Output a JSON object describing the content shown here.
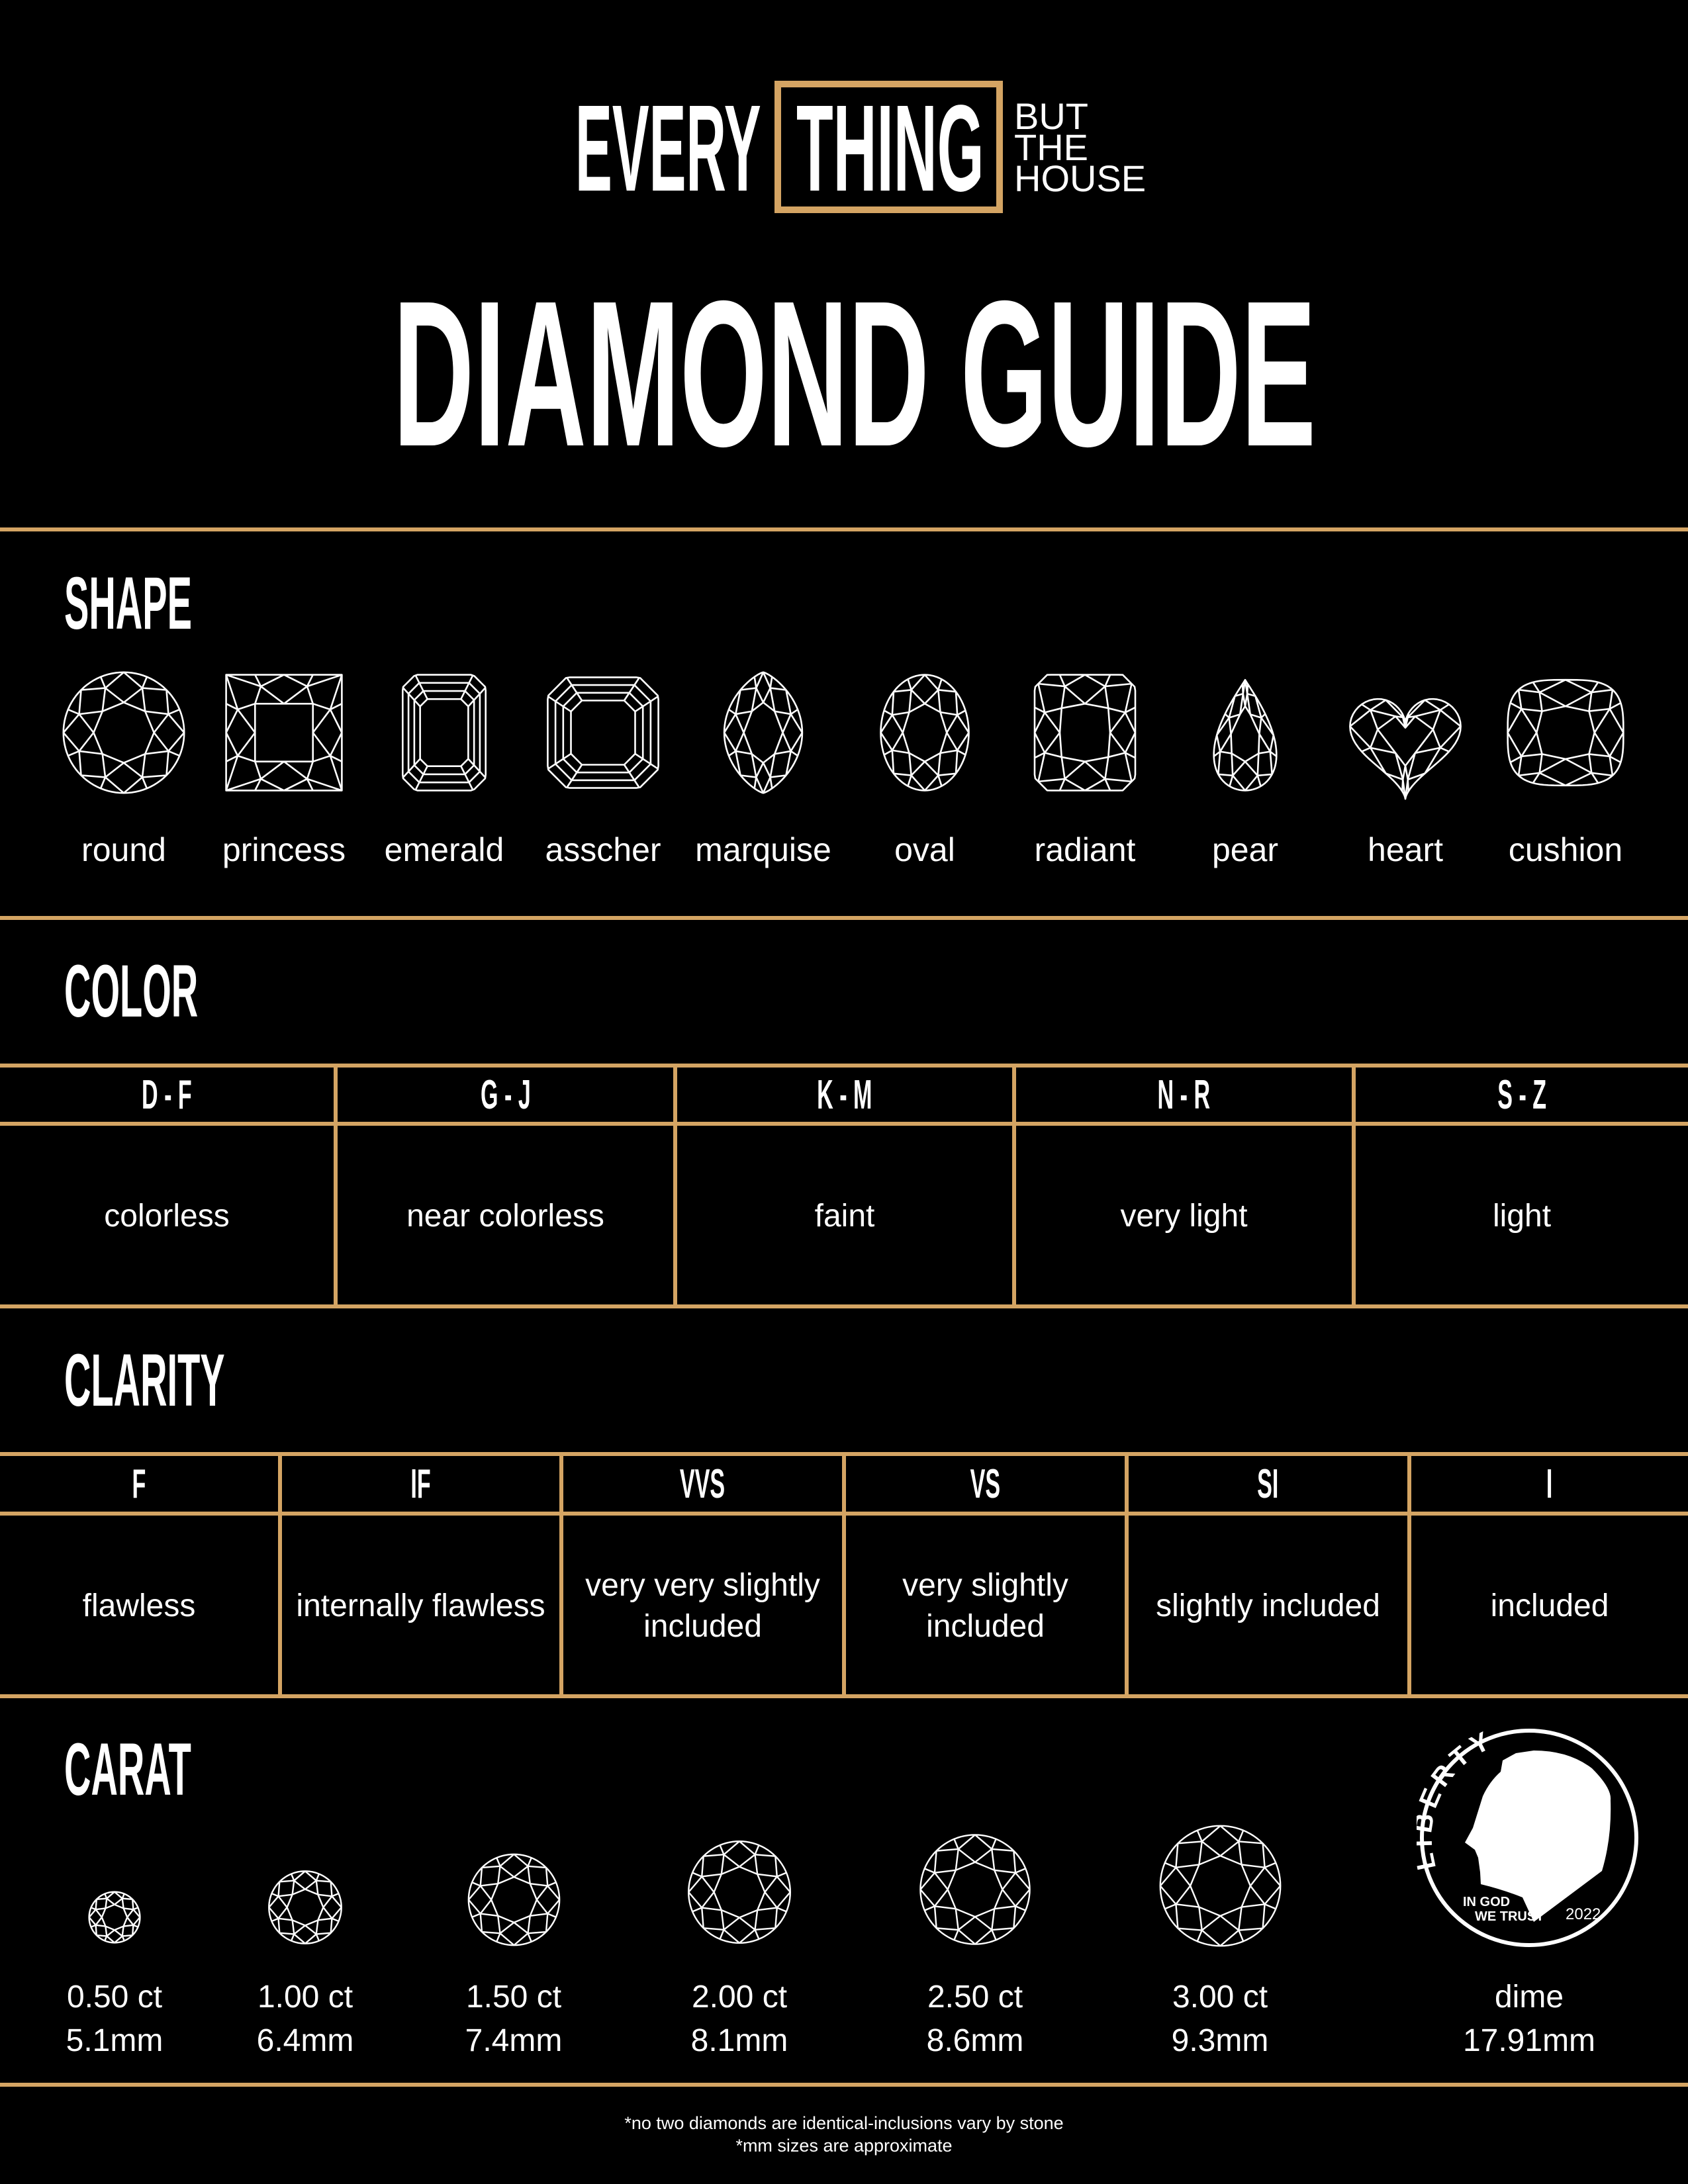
{
  "colors": {
    "gold": "#D4A463",
    "background": "#000000",
    "text": "#FFFFFF"
  },
  "logo": {
    "word1": "EVERY",
    "word2": "THING",
    "line1": "BUT",
    "line2": "THE",
    "line3": "HOUSE"
  },
  "title": "DIAMOND GUIDE",
  "shape": {
    "heading": "SHAPE",
    "items": [
      {
        "label": "round",
        "icon": "round-diamond-icon"
      },
      {
        "label": "princess",
        "icon": "princess-diamond-icon"
      },
      {
        "label": "emerald",
        "icon": "emerald-diamond-icon"
      },
      {
        "label": "asscher",
        "icon": "asscher-diamond-icon"
      },
      {
        "label": "marquise",
        "icon": "marquise-diamond-icon"
      },
      {
        "label": "oval",
        "icon": "oval-diamond-icon"
      },
      {
        "label": "radiant",
        "icon": "radiant-diamond-icon"
      },
      {
        "label": "pear",
        "icon": "pear-diamond-icon"
      },
      {
        "label": "heart",
        "icon": "heart-diamond-icon"
      },
      {
        "label": "cushion",
        "icon": "cushion-diamond-icon"
      }
    ]
  },
  "color": {
    "heading": "COLOR",
    "columns": [
      {
        "grade": "D - F",
        "desc": "colorless"
      },
      {
        "grade": "G - J",
        "desc": "near colorless"
      },
      {
        "grade": "K - M",
        "desc": "faint"
      },
      {
        "grade": "N - R",
        "desc": "very light"
      },
      {
        "grade": "S - Z",
        "desc": "light"
      }
    ]
  },
  "clarity": {
    "heading": "CLARITY",
    "columns": [
      {
        "grade": "F",
        "desc": "flawless"
      },
      {
        "grade": "IF",
        "desc": "internally flawless"
      },
      {
        "grade": "VVS",
        "desc": "very very slightly included"
      },
      {
        "grade": "VS",
        "desc": "very slightly included"
      },
      {
        "grade": "SI",
        "desc": "slightly included"
      },
      {
        "grade": "I",
        "desc": "included"
      }
    ]
  },
  "carat": {
    "heading": "CARAT",
    "items": [
      {
        "carat": "0.50 ct",
        "size": "5.1mm"
      },
      {
        "carat": "1.00 ct",
        "size": "6.4mm"
      },
      {
        "carat": "1.50 ct",
        "size": "7.4mm"
      },
      {
        "carat": "2.00 ct",
        "size": "8.1mm"
      },
      {
        "carat": "2.50 ct",
        "size": "8.6mm"
      },
      {
        "carat": "3.00 ct",
        "size": "9.3mm"
      }
    ],
    "dime": {
      "label": "dime",
      "size": "17.91mm",
      "coin_text": "LIBERTY",
      "motto1": "IN GOD",
      "motto2": "WE TRUST",
      "year": "2022"
    }
  },
  "footer": {
    "note1": "*no two diamonds are identical-inclusions vary by stone",
    "note2": "*mm sizes are approximate"
  }
}
